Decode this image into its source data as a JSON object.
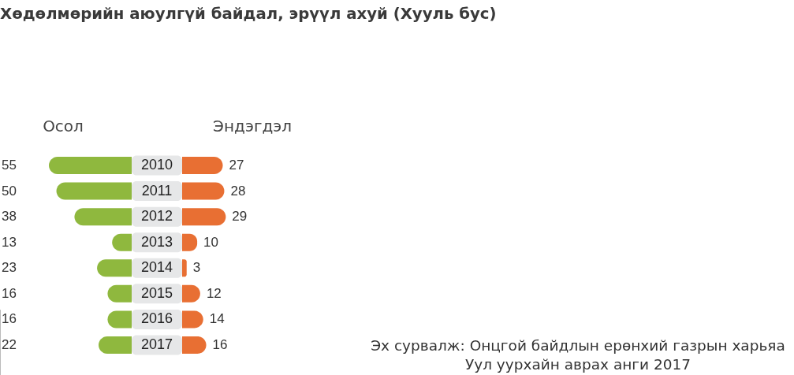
{
  "chart_data": [
    {
      "type": "bar",
      "orientation": "horizontal",
      "title": "Хөдөлмөрийн аюулгүй байдал, эрүүл ахуй (Хууль бус)",
      "categories": [
        "2010",
        "2011",
        "2012",
        "2013",
        "2014",
        "2015",
        "2016",
        "2017"
      ],
      "series": [
        {
          "name": "Осол",
          "color": "#8fb83e",
          "values": [
            55,
            50,
            38,
            13,
            23,
            16,
            16,
            22
          ]
        }
      ],
      "data_labels": true,
      "tick_labels": "y"
    },
    {
      "type": "bar",
      "orientation": "horizontal",
      "categories": [
        "2010",
        "2011",
        "2012",
        "2013",
        "2014",
        "2015",
        "2016",
        "2017"
      ],
      "series": [
        {
          "name": "Эндэгдэл",
          "color": "#e86f33",
          "values": [
            27,
            28,
            29,
            10,
            3,
            12,
            14,
            16
          ]
        }
      ],
      "data_labels": true,
      "tick_labels": false,
      "annotations": [
        "Эх сурвалж: Онцгой байдлын ерөнхий газрын харьяа",
        "Уул уурхайн аврах анги 2017"
      ]
    }
  ]
}
